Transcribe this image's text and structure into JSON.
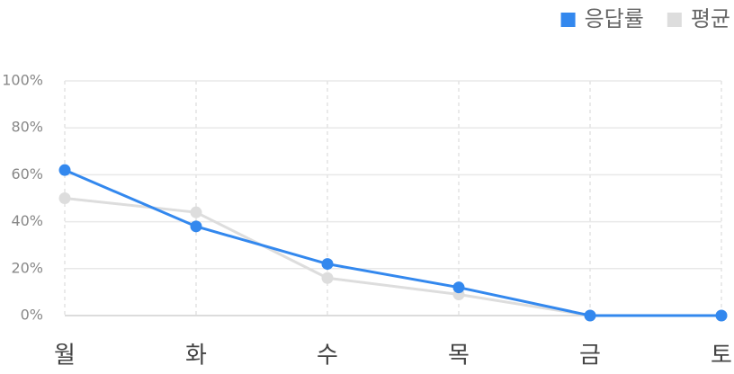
{
  "chart_data": {
    "type": "line",
    "categories": [
      "월",
      "화",
      "수",
      "목",
      "금",
      "토"
    ],
    "series": [
      {
        "name": "평균",
        "color": "#dddddd",
        "values": [
          50,
          44,
          16,
          9,
          0,
          0
        ]
      },
      {
        "name": "응답률",
        "color": "#3388ee",
        "values": [
          62,
          38,
          22,
          12,
          0,
          0
        ]
      }
    ],
    "ylim": [
      0,
      100
    ],
    "yticks": [
      {
        "value": 0,
        "label": "0%"
      },
      {
        "value": 20,
        "label": "20%"
      },
      {
        "value": 40,
        "label": "40%"
      },
      {
        "value": 60,
        "label": "60%"
      },
      {
        "value": 80,
        "label": "80%"
      },
      {
        "value": 100,
        "label": "100%"
      }
    ],
    "grid": true,
    "legend": "top-right"
  }
}
